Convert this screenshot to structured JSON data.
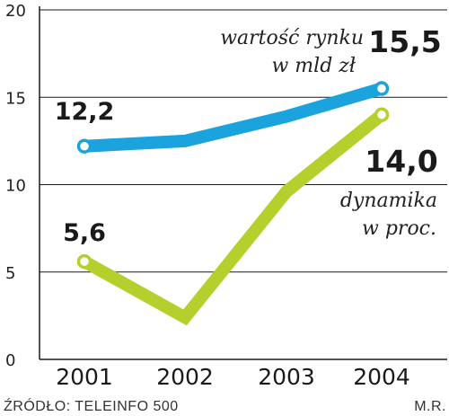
{
  "chart_data": {
    "type": "line",
    "categories": [
      "2001",
      "2002",
      "2003",
      "2004"
    ],
    "y_ticks": [
      "0",
      "5",
      "10",
      "15",
      "20"
    ],
    "ylim": [
      0,
      20
    ],
    "grid": true,
    "series": [
      {
        "name_lines": [
          "wartość rynku",
          "w mld zł"
        ],
        "color": "#1aa3dd",
        "values": [
          12.2,
          12.5,
          13.9,
          15.5
        ],
        "labeled_points": [
          {
            "index": 0,
            "label": "12,2"
          },
          {
            "index": 3,
            "label": "15,5"
          }
        ]
      },
      {
        "name_lines": [
          "dynamika",
          "w proc."
        ],
        "color": "#b5cf2c",
        "values": [
          5.6,
          2.4,
          9.6,
          14.0
        ],
        "labeled_points": [
          {
            "index": 0,
            "label": "5,6"
          },
          {
            "index": 3,
            "label": "14,0"
          }
        ]
      }
    ]
  },
  "footer": {
    "source": "ŹRÓDŁO: TELEINFO 500",
    "author": "M.R."
  }
}
